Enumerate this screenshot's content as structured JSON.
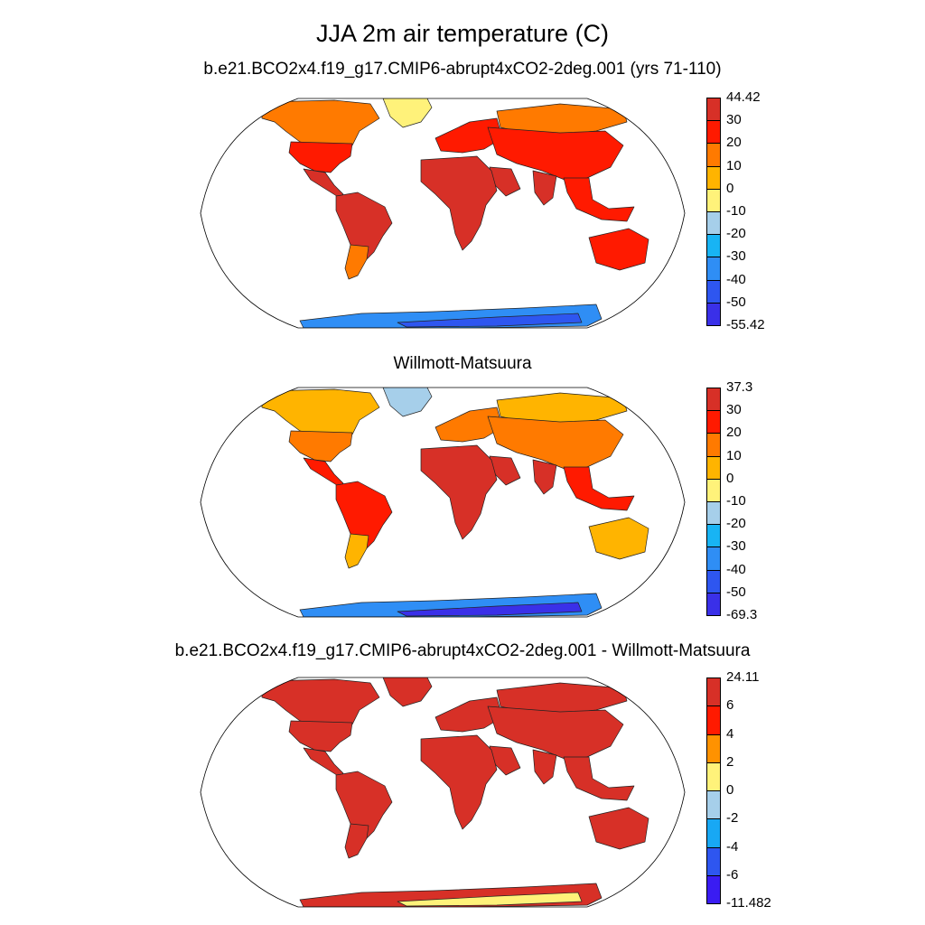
{
  "title": "JJA 2m air temperature (C)",
  "panels": [
    {
      "id": "model",
      "title": "b.e21.BCO2x4.f19_g17.CMIP6-abrupt4xCO2-2deg.001 (yrs 71-110)",
      "labels": [
        "44.42",
        "30",
        "20",
        "10",
        "0",
        "-10",
        "-20",
        "-30",
        "-40",
        "-50",
        "-55.42"
      ],
      "colors": [
        "#d73027",
        "#ff1a00",
        "#ff7a00",
        "#ffb400",
        "#fff27a",
        "#a6cfea",
        "#18b4f4",
        "#2f8ef5",
        "#2e56f0",
        "#3a30e8"
      ],
      "regions": {
        "northAmerica": "#ff7a00",
        "usa": "#ff1a00",
        "centralAmerica": "#d73027",
        "southAmerica": "#d73027",
        "southAmericaSouth": "#ff7a00",
        "greenland": "#fff27a",
        "europe": "#ff1a00",
        "asia": "#ff1a00",
        "siberia": "#ff7a00",
        "africa": "#d73027",
        "arabia": "#d73027",
        "india": "#d73027",
        "seAsia": "#ff1a00",
        "australia": "#ff1a00",
        "antarctica": "#2f8ef5",
        "antarcticaInner": "#2e56f0"
      }
    },
    {
      "id": "obs",
      "title": "Willmott-Matsuura",
      "labels": [
        "37.3",
        "30",
        "20",
        "10",
        "0",
        "-10",
        "-20",
        "-30",
        "-40",
        "-50",
        "-69.3"
      ],
      "colors": [
        "#d73027",
        "#ff1a00",
        "#ff7a00",
        "#ffb400",
        "#fff27a",
        "#a6cfea",
        "#18b4f4",
        "#2f8ef5",
        "#2e56f0",
        "#3a30e8"
      ],
      "regions": {
        "northAmerica": "#ffb400",
        "usa": "#ff7a00",
        "centralAmerica": "#ff1a00",
        "southAmerica": "#ff1a00",
        "southAmericaSouth": "#ffb400",
        "greenland": "#a6cfea",
        "europe": "#ff7a00",
        "asia": "#ff7a00",
        "siberia": "#ffb400",
        "africa": "#d73027",
        "arabia": "#d73027",
        "india": "#d73027",
        "seAsia": "#ff1a00",
        "australia": "#ffb400",
        "antarctica": "#2f8ef5",
        "antarcticaInner": "#3a30e8"
      }
    },
    {
      "id": "diff",
      "title": "b.e21.BCO2x4.f19_g17.CMIP6-abrupt4xCO2-2deg.001 - Willmott-Matsuura",
      "labels": [
        "24.11",
        "6",
        "4",
        "2",
        "0",
        "-2",
        "-4",
        "-6",
        "-11.482"
      ],
      "colors": [
        "#d73027",
        "#ff1a00",
        "#ff9200",
        "#fff27a",
        "#a6cfea",
        "#18a8f4",
        "#2e56f0",
        "#3a1cf2"
      ],
      "regions": {
        "northAmerica": "#d73027",
        "usa": "#d73027",
        "centralAmerica": "#d73027",
        "southAmerica": "#d73027",
        "southAmericaSouth": "#d73027",
        "greenland": "#d73027",
        "europe": "#d73027",
        "asia": "#d73027",
        "siberia": "#d73027",
        "africa": "#d73027",
        "arabia": "#d73027",
        "india": "#d73027",
        "seAsia": "#d73027",
        "australia": "#d73027",
        "antarctica": "#d73027",
        "antarcticaInner": "#fff27a"
      }
    }
  ]
}
